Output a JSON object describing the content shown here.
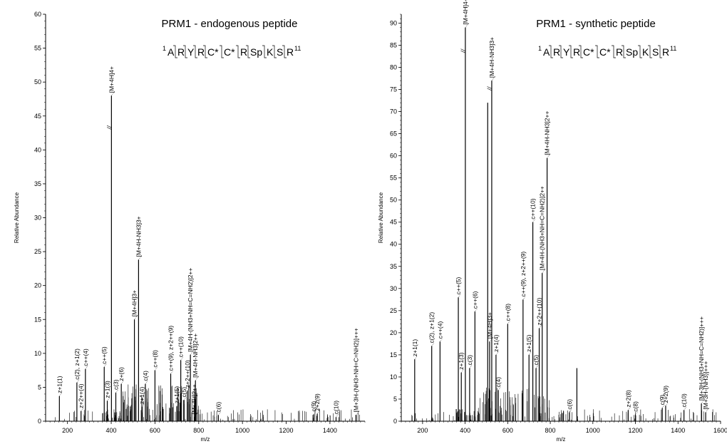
{
  "chart_data": [
    {
      "type": "bar",
      "title": "PRM1 - endogenous peptide",
      "sequence": {
        "first_index": "1",
        "residues": [
          "A",
          "R",
          "Y",
          "R",
          "C*",
          "C*",
          "R",
          "Sp",
          "K",
          "S",
          "R"
        ],
        "last_index": "11"
      },
      "xlabel": "m/z",
      "ylabel": "Relative Abundance",
      "xlim": [
        100,
        1560
      ],
      "ylim": [
        0,
        60
      ],
      "xticks": [
        "200",
        "400",
        "600",
        "800",
        "1000",
        "1200",
        "1400"
      ],
      "yticks": [
        "0",
        "5",
        "10",
        "15",
        "20",
        "25",
        "30",
        "35",
        "40",
        "45",
        "50",
        "55",
        "60"
      ],
      "grid": false,
      "peaks": [
        {
          "mz": 163,
          "intensity": 3.7,
          "label": "z+1(1)"
        },
        {
          "mz": 243,
          "intensity": 5.7,
          "label": "c(2), z+1(2)"
        },
        {
          "mz": 262,
          "intensity": 1.5,
          "label": "z+2++(4)"
        },
        {
          "mz": 282,
          "intensity": 7.7,
          "label": "c++(4)"
        },
        {
          "mz": 368,
          "intensity": 8.0,
          "label": "c++(5)"
        },
        {
          "mz": 382,
          "intensity": 3.0,
          "label": "z+1(3)"
        },
        {
          "mz": 401,
          "intensity": 43.5,
          "label": "[M+4H]4+",
          "break": true,
          "truncated_at": 48
        },
        {
          "mz": 421,
          "intensity": 4.2,
          "label": "c(3)"
        },
        {
          "mz": 446,
          "intensity": 5.5,
          "label": "z+(6)"
        },
        {
          "mz": 506,
          "intensity": 15.0,
          "label": "[M+4H]3+"
        },
        {
          "mz": 525,
          "intensity": 23.8,
          "label": "[M+4H-NH3]3+"
        },
        {
          "mz": 540,
          "intensity": 2.1,
          "label": "z+1(4)"
        },
        {
          "mz": 556,
          "intensity": 5.5,
          "label": "c(4)"
        },
        {
          "mz": 600,
          "intensity": 7.5,
          "label": "c++(8)"
        },
        {
          "mz": 672,
          "intensity": 7.0,
          "label": "c++(9), z+2++(9)"
        },
        {
          "mz": 700,
          "intensity": 2.2,
          "label": "z+1(5)"
        },
        {
          "mz": 718,
          "intensity": 9.0,
          "label": "c++(10)"
        },
        {
          "mz": 733,
          "intensity": 3.1,
          "label": "c(5)"
        },
        {
          "mz": 748,
          "intensity": 4.5,
          "label": "z+2++(10)"
        },
        {
          "mz": 762,
          "intensity": 9.8,
          "label": "[M+4H-(NH3+NH=C=NH2)]2++"
        },
        {
          "mz": 780,
          "intensity": 0.6,
          "label": "[M+4H]2++"
        },
        {
          "mz": 785,
          "intensity": 6.0,
          "label": "[M+4H-NH3]2++"
        },
        {
          "mz": 890,
          "intensity": 0.9,
          "label": "c(6)"
        },
        {
          "mz": 1326,
          "intensity": 1.0,
          "label": "c(9)"
        },
        {
          "mz": 1342,
          "intensity": 1.1,
          "label": "z+2(9)"
        },
        {
          "mz": 1428,
          "intensity": 0.6,
          "label": "c(10)"
        },
        {
          "mz": 1520,
          "intensity": 0.9,
          "label": "[M+3H-(NH3+NH=C=NH2)]+++"
        }
      ]
    },
    {
      "type": "bar",
      "title": "PRM1 - synthetic peptide",
      "sequence": {
        "first_index": "1",
        "residues": [
          "A",
          "R",
          "Y",
          "R",
          "C*",
          "C*",
          "R",
          "Sp",
          "K",
          "S",
          "R"
        ],
        "last_index": "11"
      },
      "xlabel": "m/z",
      "ylabel": "Relative Abundance",
      "xlim": [
        100,
        1600
      ],
      "ylim": [
        0,
        92
      ],
      "xticks": [
        "200",
        "400",
        "600",
        "800",
        "1000",
        "1200",
        "1400",
        "1600"
      ],
      "yticks": [
        "0",
        "5",
        "10",
        "15",
        "20",
        "25",
        "30",
        "35",
        "40",
        "45",
        "50",
        "55",
        "60",
        "65",
        "70",
        "75",
        "80",
        "85",
        "90"
      ],
      "grid": false,
      "peaks": [
        {
          "mz": 163,
          "intensity": 14.0,
          "label": "z+1(1)"
        },
        {
          "mz": 243,
          "intensity": 17.0,
          "label": "c(2), z+1(2)"
        },
        {
          "mz": 282,
          "intensity": 18.0,
          "label": "c++(4)"
        },
        {
          "mz": 368,
          "intensity": 28.0,
          "label": "c++(5)"
        },
        {
          "mz": 382,
          "intensity": 11.0,
          "label": "z+1(3)"
        },
        {
          "mz": 401,
          "intensity": 84.0,
          "label": "[M+4H]4+",
          "break": true,
          "truncated_at": 89
        },
        {
          "mz": 421,
          "intensity": 12.0,
          "label": "c(3)"
        },
        {
          "mz": 446,
          "intensity": 24.8,
          "label": "c++(6)"
        },
        {
          "mz": 506,
          "intensity": 72.0,
          "label": ""
        },
        {
          "mz": 515,
          "intensity": 18.0,
          "label": "[M+4H]3+"
        },
        {
          "mz": 525,
          "intensity": 75.5,
          "label": "[M+4H-NH3]3+",
          "break": true,
          "truncated_at": 77
        },
        {
          "mz": 545,
          "intensity": 15.0,
          "label": "z+1(4)"
        },
        {
          "mz": 556,
          "intensity": 7.0,
          "label": "c(4)"
        },
        {
          "mz": 600,
          "intensity": 22.0,
          "label": "c++(8)"
        },
        {
          "mz": 672,
          "intensity": 27.5,
          "label": "c++(9), z+2++(9)"
        },
        {
          "mz": 700,
          "intensity": 15.0,
          "label": "z+1(5)"
        },
        {
          "mz": 718,
          "intensity": 45.0,
          "label": "c++(10)"
        },
        {
          "mz": 733,
          "intensity": 12.0,
          "label": "c(5)"
        },
        {
          "mz": 748,
          "intensity": 21.0,
          "label": "z+2++(10)"
        },
        {
          "mz": 762,
          "intensity": 33.5,
          "label": "[M+4H-(NH3+NH=C=NH2)]2++"
        },
        {
          "mz": 785,
          "intensity": 59.5,
          "label": "[M+4H-NH3]2++"
        },
        {
          "mz": 890,
          "intensity": 2.0,
          "label": "c(6)"
        },
        {
          "mz": 925,
          "intensity": 12.0,
          "label": ""
        },
        {
          "mz": 1166,
          "intensity": 2.5,
          "label": "z+2(8)"
        },
        {
          "mz": 1200,
          "intensity": 1.5,
          "label": "c(8)"
        },
        {
          "mz": 1326,
          "intensity": 3.0,
          "label": "c(9)"
        },
        {
          "mz": 1342,
          "intensity": 3.5,
          "label": "z+2(9)"
        },
        {
          "mz": 1428,
          "intensity": 2.5,
          "label": "c(10)"
        },
        {
          "mz": 1510,
          "intensity": 4.0,
          "label": "[M+3H-(NH3+NH=C=NH2)]+++"
        },
        {
          "mz": 1530,
          "intensity": 2.0,
          "label": "[M+3H-(NH3)]+++"
        }
      ]
    }
  ]
}
